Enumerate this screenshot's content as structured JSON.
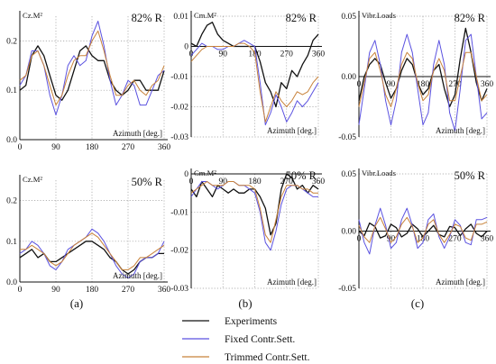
{
  "colors": {
    "experiments": "#111111",
    "fixed": "#5b52e0",
    "trimmed": "#c8823a",
    "grid": "#9a9a9a",
    "axis": "#111111"
  },
  "legend": {
    "items": [
      {
        "label": "Experiments",
        "color": "#111111"
      },
      {
        "label": "Fixed Contr.Sett.",
        "color": "#5b52e0"
      },
      {
        "label": "Trimmed Contr.Sett.",
        "color": "#c8823a"
      }
    ]
  },
  "panel_labels": [
    "(a)",
    "(b)",
    "(c)"
  ],
  "chart_data": [
    {
      "type": "line",
      "column": 0,
      "row": 0,
      "ylabel": "Cz.M²",
      "xlabel": "Azimuth [deg.]",
      "station": "82% R",
      "xlim": [
        0,
        360
      ],
      "ylim": [
        0,
        0.25
      ],
      "yticks": [
        0,
        0.1,
        0.2
      ],
      "xticks": [
        0,
        90,
        180,
        270,
        360
      ],
      "grid": true,
      "x": [
        0,
        15,
        30,
        45,
        60,
        75,
        90,
        105,
        120,
        135,
        150,
        165,
        180,
        195,
        210,
        225,
        240,
        255,
        270,
        285,
        300,
        315,
        330,
        345,
        360
      ],
      "series": [
        {
          "key": "experiments",
          "values": [
            0.1,
            0.11,
            0.17,
            0.19,
            0.17,
            0.13,
            0.09,
            0.08,
            0.1,
            0.14,
            0.18,
            0.19,
            0.17,
            0.16,
            0.16,
            0.12,
            0.1,
            0.09,
            0.1,
            0.12,
            0.12,
            0.1,
            0.1,
            0.1,
            0.14
          ]
        },
        {
          "key": "fixed",
          "values": [
            0.11,
            0.13,
            0.18,
            0.18,
            0.15,
            0.09,
            0.05,
            0.09,
            0.15,
            0.17,
            0.15,
            0.16,
            0.21,
            0.24,
            0.19,
            0.12,
            0.07,
            0.09,
            0.12,
            0.11,
            0.07,
            0.07,
            0.1,
            0.13,
            0.14
          ]
        },
        {
          "key": "trimmed",
          "values": [
            0.12,
            0.13,
            0.17,
            0.18,
            0.15,
            0.11,
            0.07,
            0.09,
            0.13,
            0.16,
            0.17,
            0.17,
            0.2,
            0.22,
            0.18,
            0.13,
            0.09,
            0.09,
            0.11,
            0.12,
            0.1,
            0.09,
            0.11,
            0.12,
            0.15
          ]
        }
      ]
    },
    {
      "type": "line",
      "column": 0,
      "row": 1,
      "ylabel": "Cz.M²",
      "xlabel": "Azimuth [deg.]",
      "station": "50% R",
      "xlim": [
        0,
        360
      ],
      "ylim": [
        0,
        0.25
      ],
      "yticks": [
        0,
        0.1,
        0.2
      ],
      "xticks": [
        0,
        90,
        180,
        270,
        360
      ],
      "grid": true,
      "x": [
        0,
        15,
        30,
        45,
        60,
        75,
        90,
        105,
        120,
        135,
        150,
        165,
        180,
        195,
        210,
        225,
        240,
        255,
        270,
        285,
        300,
        315,
        330,
        345,
        360
      ],
      "series": [
        {
          "key": "experiments",
          "values": [
            0.06,
            0.07,
            0.08,
            0.06,
            0.07,
            0.05,
            0.05,
            0.06,
            0.07,
            0.08,
            0.09,
            0.1,
            0.1,
            0.09,
            0.08,
            0.06,
            0.05,
            0.03,
            0.02,
            0.03,
            0.05,
            0.06,
            0.06,
            0.07,
            0.07
          ]
        },
        {
          "key": "fixed",
          "values": [
            0.07,
            0.08,
            0.1,
            0.09,
            0.07,
            0.04,
            0.03,
            0.05,
            0.08,
            0.09,
            0.1,
            0.11,
            0.13,
            0.12,
            0.1,
            0.07,
            0.04,
            0.02,
            0.01,
            0.02,
            0.05,
            0.06,
            0.06,
            0.07,
            0.1
          ]
        },
        {
          "key": "trimmed",
          "values": [
            0.08,
            0.08,
            0.09,
            0.08,
            0.07,
            0.05,
            0.04,
            0.05,
            0.07,
            0.09,
            0.1,
            0.11,
            0.12,
            0.11,
            0.09,
            0.07,
            0.05,
            0.03,
            0.03,
            0.04,
            0.06,
            0.06,
            0.07,
            0.08,
            0.09
          ]
        }
      ]
    },
    {
      "type": "line",
      "column": 1,
      "row": 0,
      "ylabel": "Cm.M²",
      "xlabel": "Azimuth [deg.]",
      "station": "82% R",
      "xlim": [
        0,
        360
      ],
      "ylim": [
        -0.03,
        0.01
      ],
      "yticks": [
        -0.03,
        -0.02,
        -0.01,
        0,
        0.01
      ],
      "xticks": [
        0,
        90,
        180,
        270,
        360
      ],
      "grid": true,
      "x": [
        0,
        15,
        30,
        45,
        60,
        75,
        90,
        105,
        120,
        135,
        150,
        165,
        180,
        195,
        210,
        225,
        240,
        255,
        270,
        285,
        300,
        315,
        330,
        345,
        360
      ],
      "series": [
        {
          "key": "experiments",
          "values": [
            0.001,
            0.0,
            0.004,
            0.007,
            0.008,
            0.004,
            0.002,
            0.001,
            0.0,
            0.0,
            0.0,
            0.0,
            0.0,
            -0.005,
            -0.012,
            -0.015,
            -0.02,
            -0.012,
            -0.014,
            -0.008,
            -0.01,
            -0.006,
            -0.003,
            0.002,
            0.004
          ]
        },
        {
          "key": "fixed",
          "values": [
            -0.003,
            -0.001,
            0.001,
            0.0,
            0.0,
            -0.001,
            -0.001,
            0.0,
            0.0,
            0.001,
            0.002,
            0.001,
            0.0,
            -0.012,
            -0.026,
            -0.022,
            -0.016,
            -0.02,
            -0.025,
            -0.022,
            -0.018,
            -0.02,
            -0.018,
            -0.015,
            -0.012
          ]
        },
        {
          "key": "trimmed",
          "values": [
            -0.005,
            -0.003,
            -0.001,
            0.0,
            0.0,
            0.0,
            0.0,
            0.0,
            0.0,
            0.001,
            0.001,
            0.0,
            -0.002,
            -0.015,
            -0.025,
            -0.02,
            -0.015,
            -0.018,
            -0.02,
            -0.018,
            -0.015,
            -0.016,
            -0.015,
            -0.012,
            -0.01
          ]
        }
      ]
    },
    {
      "type": "line",
      "column": 1,
      "row": 1,
      "ylabel": "Cm.M²",
      "xlabel": "Azimuth [deg.]",
      "station": "50% R",
      "xlim": [
        0,
        360
      ],
      "ylim": [
        -0.03,
        0.0
      ],
      "yticks": [
        -0.03,
        -0.02,
        -0.01,
        0
      ],
      "xticks": [
        0,
        90,
        180,
        270,
        360
      ],
      "grid": true,
      "x": [
        0,
        15,
        30,
        45,
        60,
        75,
        90,
        105,
        120,
        135,
        150,
        165,
        180,
        195,
        210,
        225,
        240,
        255,
        270,
        285,
        300,
        315,
        330,
        345,
        360
      ],
      "series": [
        {
          "key": "experiments",
          "values": [
            -0.004,
            -0.006,
            -0.002,
            -0.004,
            -0.006,
            -0.003,
            -0.004,
            -0.005,
            -0.004,
            -0.005,
            -0.005,
            -0.004,
            -0.004,
            -0.006,
            -0.009,
            -0.016,
            -0.013,
            -0.004,
            0.0,
            -0.001,
            -0.004,
            -0.003,
            -0.005,
            -0.003,
            -0.004
          ]
        },
        {
          "key": "fixed",
          "values": [
            -0.006,
            -0.004,
            -0.002,
            -0.002,
            -0.003,
            -0.004,
            -0.003,
            -0.002,
            -0.002,
            -0.003,
            -0.003,
            -0.004,
            -0.005,
            -0.01,
            -0.018,
            -0.02,
            -0.015,
            -0.008,
            -0.004,
            -0.003,
            -0.003,
            -0.004,
            -0.005,
            -0.006,
            -0.006
          ]
        },
        {
          "key": "trimmed",
          "values": [
            -0.005,
            -0.004,
            -0.003,
            -0.002,
            -0.003,
            -0.003,
            -0.003,
            -0.002,
            -0.002,
            -0.003,
            -0.003,
            -0.003,
            -0.004,
            -0.009,
            -0.016,
            -0.018,
            -0.012,
            -0.006,
            -0.003,
            -0.003,
            -0.003,
            -0.004,
            -0.004,
            -0.005,
            -0.005
          ]
        }
      ]
    },
    {
      "type": "line",
      "column": 2,
      "row": 0,
      "ylabel": "Vibr.Loads",
      "xlabel": "Azimuth [deg.]",
      "station": "82% R",
      "xlim": [
        0,
        360
      ],
      "ylim": [
        -0.05,
        0.05
      ],
      "yticks": [
        -0.05,
        0,
        0.05
      ],
      "xticks": [
        0,
        90,
        180,
        270,
        360
      ],
      "grid": true,
      "x": [
        0,
        15,
        30,
        45,
        60,
        75,
        90,
        105,
        120,
        135,
        150,
        165,
        180,
        195,
        210,
        225,
        240,
        255,
        270,
        285,
        300,
        315,
        330,
        345,
        360
      ],
      "series": [
        {
          "key": "experiments",
          "values": [
            -0.02,
            0.0,
            0.01,
            0.015,
            0.01,
            -0.005,
            -0.018,
            -0.01,
            0.005,
            0.015,
            0.01,
            -0.005,
            -0.015,
            -0.01,
            0.005,
            0.01,
            -0.01,
            -0.025,
            -0.015,
            0.015,
            0.04,
            0.02,
            -0.005,
            -0.02,
            -0.01
          ]
        },
        {
          "key": "fixed",
          "values": [
            -0.04,
            -0.01,
            0.02,
            0.03,
            0.01,
            -0.02,
            -0.04,
            -0.02,
            0.02,
            0.035,
            0.02,
            -0.01,
            -0.04,
            -0.03,
            0.01,
            0.03,
            0.01,
            -0.03,
            -0.045,
            -0.01,
            0.03,
            0.035,
            0.0,
            -0.035,
            -0.03
          ]
        },
        {
          "key": "trimmed",
          "values": [
            -0.025,
            -0.005,
            0.015,
            0.02,
            0.005,
            -0.015,
            -0.025,
            -0.01,
            0.01,
            0.02,
            0.015,
            -0.005,
            -0.02,
            -0.015,
            0.005,
            0.015,
            0.005,
            -0.02,
            -0.02,
            0.0,
            0.02,
            0.02,
            0.0,
            -0.02,
            -0.015
          ]
        }
      ]
    },
    {
      "type": "line",
      "column": 2,
      "row": 1,
      "ylabel": "Vibr.Loads",
      "xlabel": "Azimuth [deg.]",
      "station": "50% R",
      "xlim": [
        0,
        360
      ],
      "ylim": [
        -0.05,
        0.05
      ],
      "yticks": [
        -0.05,
        0,
        0.05
      ],
      "xticks": [
        0,
        90,
        180,
        270,
        360
      ],
      "grid": true,
      "x": [
        0,
        15,
        30,
        45,
        60,
        75,
        90,
        105,
        120,
        135,
        150,
        165,
        180,
        195,
        210,
        225,
        240,
        255,
        270,
        285,
        300,
        315,
        330,
        345,
        360
      ],
      "series": [
        {
          "key": "experiments",
          "values": [
            0.0,
            -0.004,
            0.007,
            0.004,
            -0.006,
            -0.004,
            0.006,
            0.003,
            -0.005,
            -0.002,
            0.006,
            0.002,
            -0.005,
            0.0,
            0.005,
            -0.003,
            -0.005,
            0.004,
            0.003,
            -0.004,
            0.002,
            0.006,
            -0.002,
            -0.005,
            0.0
          ]
        },
        {
          "key": "fixed",
          "values": [
            0.01,
            -0.01,
            -0.02,
            0.005,
            0.02,
            0.005,
            -0.015,
            -0.01,
            0.01,
            0.02,
            0.005,
            -0.015,
            -0.01,
            0.01,
            0.015,
            -0.005,
            -0.015,
            -0.005,
            0.01,
            0.005,
            -0.01,
            -0.012,
            0.01,
            0.01,
            0.012
          ]
        },
        {
          "key": "trimmed",
          "values": [
            0.005,
            -0.005,
            -0.01,
            0.004,
            0.012,
            0.002,
            -0.01,
            -0.005,
            0.006,
            0.012,
            0.004,
            -0.01,
            -0.006,
            0.006,
            0.01,
            -0.003,
            -0.01,
            -0.003,
            0.006,
            0.004,
            -0.006,
            -0.008,
            0.006,
            0.006,
            0.008
          ]
        }
      ]
    }
  ]
}
